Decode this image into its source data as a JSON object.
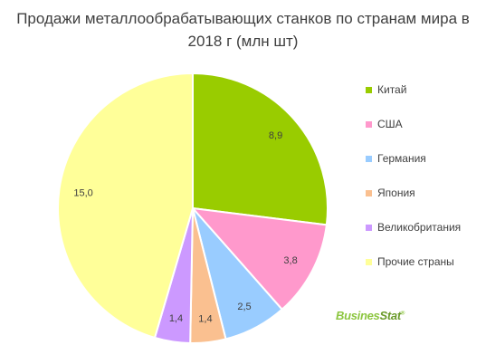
{
  "chart_data": {
    "type": "pie",
    "title": "Продажи металлообрабатывающих станков по странам мира в 2018 г (млн шт)",
    "slices": [
      {
        "name": "Китай",
        "value": 8.9,
        "label": "8,9",
        "color": "#99cc00"
      },
      {
        "name": "США",
        "value": 3.8,
        "label": "3,8",
        "color": "#ff99cc"
      },
      {
        "name": "Германия",
        "value": 2.5,
        "label": "2,5",
        "color": "#99ccff"
      },
      {
        "name": "Япония",
        "value": 1.4,
        "label": "1,4",
        "color": "#fac090"
      },
      {
        "name": "Великобритания",
        "value": 1.4,
        "label": "1,4",
        "color": "#cc99ff"
      },
      {
        "name": "Прочие страны",
        "value": 15.0,
        "label": "15,0",
        "color": "#ffff99"
      }
    ],
    "legend_position": "right"
  },
  "logo": {
    "part1": "Busines",
    "part2": "Stat",
    "mark": "®"
  }
}
